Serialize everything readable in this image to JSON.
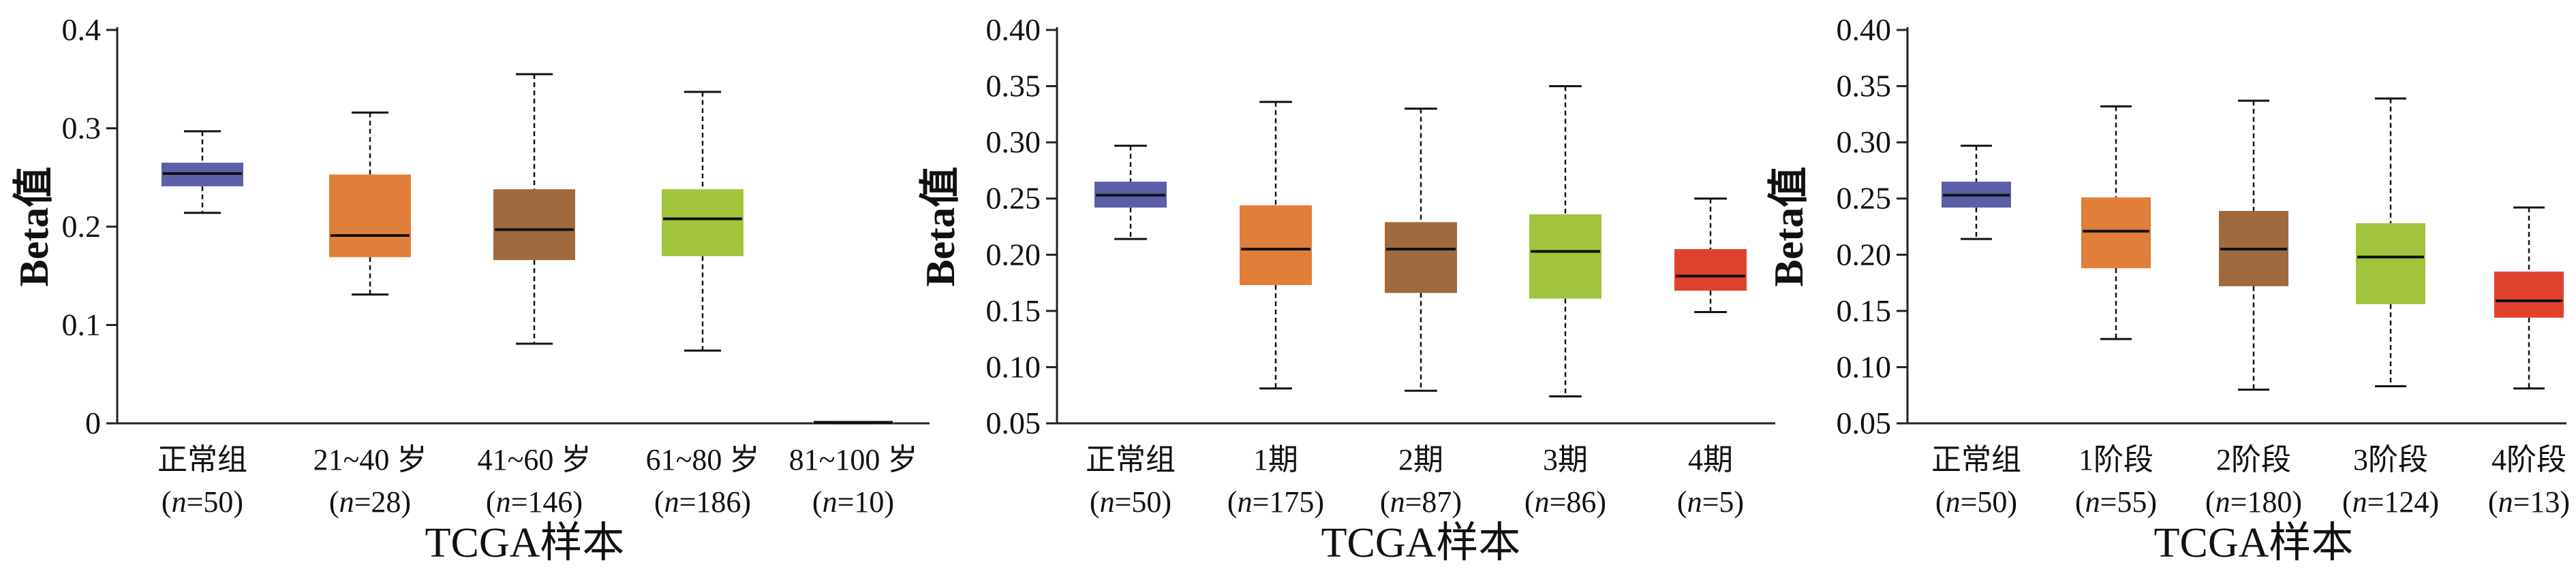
{
  "chart_data": [
    {
      "type": "box",
      "xlabel": "TCGA样本",
      "ylabel": "Beta值",
      "ylim": [
        0,
        0.4
      ],
      "yticks": [
        0,
        0.1,
        0.2,
        0.3,
        0.4
      ],
      "ytick_labels": [
        "0",
        "0.1",
        "0.2",
        "0.3",
        "0.4"
      ],
      "categories": [
        {
          "label": "正常组",
          "n": "50",
          "color": "#5b5fa8",
          "min": 0.214,
          "q1": 0.241,
          "median": 0.254,
          "q3": 0.265,
          "max": 0.297
        },
        {
          "label": "21~40 岁",
          "n": "28",
          "color": "#e07e3a",
          "min": 0.131,
          "q1": 0.169,
          "median": 0.191,
          "q3": 0.253,
          "max": 0.316
        },
        {
          "label": "41~60 岁",
          "n": "146",
          "color": "#a0693e",
          "min": 0.081,
          "q1": 0.166,
          "median": 0.197,
          "q3": 0.238,
          "max": 0.355
        },
        {
          "label": "61~80 岁",
          "n": "186",
          "color": "#a2c43c",
          "min": 0.074,
          "q1": 0.17,
          "median": 0.208,
          "q3": 0.238,
          "max": 0.337
        },
        {
          "label": "81~100 岁",
          "n": "10",
          "color": "#e0422e",
          "min": 0.0,
          "q1": 0.0,
          "median": 0.001,
          "q3": 0.001,
          "max": 0.001
        }
      ]
    },
    {
      "type": "box",
      "xlabel": "TCGA样本",
      "ylabel": "Beta值",
      "ylim": [
        0.05,
        0.4
      ],
      "yticks": [
        0.05,
        0.1,
        0.15,
        0.2,
        0.25,
        0.3,
        0.35,
        0.4
      ],
      "ytick_labels": [
        "0.05",
        "0.10",
        "0.15",
        "0.20",
        "0.25",
        "0.30",
        "0.35",
        "0.40"
      ],
      "categories": [
        {
          "label": "正常组",
          "n": "50",
          "color": "#5b5fa8",
          "min": 0.214,
          "q1": 0.242,
          "median": 0.253,
          "q3": 0.265,
          "max": 0.297
        },
        {
          "label": "1期",
          "n": "175",
          "color": "#e07e3a",
          "min": 0.081,
          "q1": 0.173,
          "median": 0.205,
          "q3": 0.244,
          "max": 0.336
        },
        {
          "label": "2期",
          "n": "87",
          "color": "#a0693e",
          "min": 0.079,
          "q1": 0.166,
          "median": 0.205,
          "q3": 0.229,
          "max": 0.33
        },
        {
          "label": "3期",
          "n": "86",
          "color": "#a2c43c",
          "min": 0.074,
          "q1": 0.161,
          "median": 0.203,
          "q3": 0.236,
          "max": 0.35
        },
        {
          "label": "4期",
          "n": "5",
          "color": "#e0422e",
          "min": 0.149,
          "q1": 0.168,
          "median": 0.181,
          "q3": 0.205,
          "max": 0.25
        }
      ]
    },
    {
      "type": "box",
      "xlabel": "TCGA样本",
      "ylabel": "Beta值",
      "ylim": [
        0.05,
        0.4
      ],
      "yticks": [
        0.05,
        0.1,
        0.15,
        0.2,
        0.25,
        0.3,
        0.35,
        0.4
      ],
      "ytick_labels": [
        "0.05",
        "0.10",
        "0.15",
        "0.20",
        "0.25",
        "0.30",
        "0.35",
        "0.40"
      ],
      "categories": [
        {
          "label": "正常组",
          "n": "50",
          "color": "#5b5fa8",
          "min": 0.214,
          "q1": 0.242,
          "median": 0.253,
          "q3": 0.265,
          "max": 0.297
        },
        {
          "label": "1阶段",
          "n": "55",
          "color": "#e07e3a",
          "min": 0.125,
          "q1": 0.188,
          "median": 0.221,
          "q3": 0.251,
          "max": 0.332
        },
        {
          "label": "2阶段",
          "n": "180",
          "color": "#a0693e",
          "min": 0.08,
          "q1": 0.172,
          "median": 0.205,
          "q3": 0.239,
          "max": 0.337
        },
        {
          "label": "3阶段",
          "n": "124",
          "color": "#a2c43c",
          "min": 0.083,
          "q1": 0.156,
          "median": 0.198,
          "q3": 0.228,
          "max": 0.339
        },
        {
          "label": "4阶段",
          "n": "13",
          "color": "#e0422e",
          "min": 0.081,
          "q1": 0.144,
          "median": 0.159,
          "q3": 0.185,
          "max": 0.242
        }
      ]
    }
  ]
}
